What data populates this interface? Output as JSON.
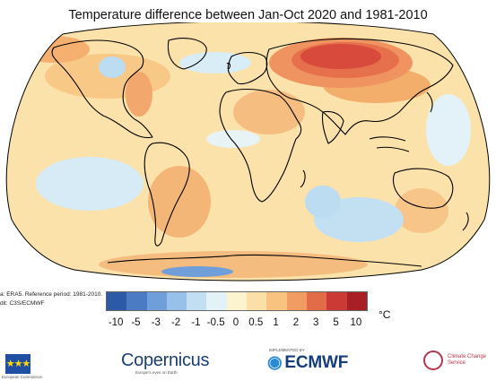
{
  "title": "Temperature difference between Jan-Oct 2020 and 1981-2010",
  "source_lines": [
    "a: ERA5.  Reference period: 1981-2010.",
    "dit: C3S/ECMWF"
  ],
  "colorbar": {
    "unit": "°C",
    "labels": [
      "-10",
      "-5",
      "-3",
      "-2",
      "-1",
      "-0.5",
      "0",
      "0.5",
      "1",
      "2",
      "3",
      "5",
      "10"
    ],
    "colors": [
      "#2c5aa6",
      "#4a7bc3",
      "#6f9ed8",
      "#98c1ea",
      "#c1def3",
      "#e3f1f8",
      "#fcf3cf",
      "#fbe0a6",
      "#f8c27f",
      "#f09c62",
      "#e26b48",
      "#cc3a35",
      "#a81f25"
    ]
  },
  "logos": {
    "eu_caption": "European Commission",
    "copernicus_name": "Copernicus",
    "copernicus_tagline": "Europe's eyes on Earth",
    "ecmwf_top": "IMPLEMENTED BY",
    "ecmwf_name": "ECMWF",
    "ccs_name": "Climate Change Service"
  }
}
